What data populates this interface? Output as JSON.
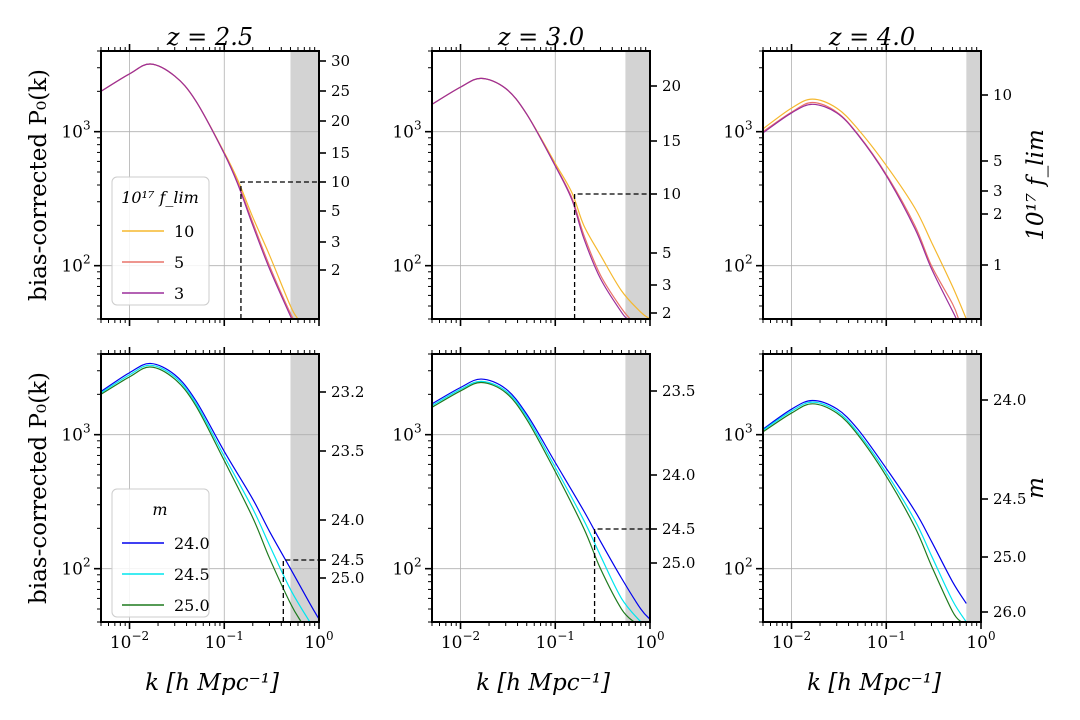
{
  "figure": {
    "ylabel": "bias-corrected P₀(k)",
    "xlabel": "k  [h Mpc⁻¹]",
    "right_ylabel_top": "10¹⁷ f_lim",
    "right_ylabel_bottom": "m",
    "column_titles": [
      "z = 2.5",
      "z = 3.0",
      "z = 4.0"
    ],
    "x_tick_labels": [
      "10⁻²",
      "10⁻¹",
      "10⁰"
    ],
    "y_tick_labels": [
      "10²",
      "10³"
    ],
    "legend_top": {
      "title": "10¹⁷ f_lim",
      "entries": [
        "10",
        "5",
        "3"
      ]
    },
    "legend_bottom": {
      "title": "m",
      "entries": [
        "24.0",
        "24.5",
        "25.0"
      ]
    }
  },
  "colors": {
    "flim_10": "#f5b82e",
    "flim_5": "#e9736a",
    "flim_3": "#9b2e9c",
    "m_24_0": "#0000ee",
    "m_24_5": "#00e5ee",
    "m_25_0": "#1e7a1e",
    "shade": "#d3d3d3",
    "grid": "#b0b0b0"
  },
  "chart_data": [
    {
      "type": "line",
      "row": "flim",
      "col": 0,
      "z": 2.5,
      "title": "z = 2.5",
      "xlabel": "",
      "ylabel": "bias-corrected P₀(k)",
      "x_scale": "log",
      "y_scale": "log",
      "xlim": [
        0.005,
        1.0
      ],
      "ylim": [
        40,
        4000
      ],
      "shaded_kmin": 0.5,
      "series": [
        {
          "name": "10",
          "color_key": "flim_10",
          "peak": 3200,
          "x": [
            0.005,
            0.01,
            0.0166,
            0.03,
            0.05,
            0.1,
            0.14,
            0.2,
            0.3,
            0.5,
            0.6
          ],
          "y": [
            2000,
            2700,
            3200,
            2600,
            1700,
            700,
            430,
            230,
            120,
            50,
            40
          ]
        },
        {
          "name": "5",
          "color_key": "flim_5",
          "peak": 3200,
          "x": [
            0.005,
            0.01,
            0.0166,
            0.03,
            0.05,
            0.1,
            0.14,
            0.2,
            0.3,
            0.5,
            0.55
          ],
          "y": [
            2000,
            2700,
            3200,
            2600,
            1700,
            690,
            410,
            210,
            100,
            44,
            40
          ]
        },
        {
          "name": "3",
          "color_key": "flim_3",
          "peak": 3200,
          "x": [
            0.005,
            0.01,
            0.0166,
            0.03,
            0.05,
            0.1,
            0.14,
            0.2,
            0.3,
            0.5,
            0.52
          ],
          "y": [
            2000,
            2700,
            3200,
            2600,
            1700,
            685,
            400,
            200,
            95,
            42,
            40
          ]
        }
      ],
      "secondary_axis": {
        "label": "10¹⁷ f_lim",
        "ticks": [
          30,
          25,
          20,
          15,
          10,
          5,
          3,
          2
        ]
      },
      "cutoff_marker": {
        "k": 0.15,
        "value": 10
      }
    },
    {
      "type": "line",
      "row": "flim",
      "col": 1,
      "z": 3.0,
      "title": "z = 3.0",
      "xlabel": "",
      "ylabel": "",
      "x_scale": "log",
      "y_scale": "log",
      "xlim": [
        0.005,
        1.0
      ],
      "ylim": [
        40,
        4000
      ],
      "shaded_kmin": 0.55,
      "series": [
        {
          "name": "10",
          "color_key": "flim_10",
          "peak": 2500,
          "x": [
            0.005,
            0.01,
            0.0166,
            0.03,
            0.05,
            0.1,
            0.15,
            0.2,
            0.3,
            0.5,
            0.8,
            1.0
          ],
          "y": [
            1600,
            2150,
            2500,
            2100,
            1350,
            580,
            350,
            200,
            120,
            65,
            45,
            40
          ]
        },
        {
          "name": "5",
          "color_key": "flim_5",
          "peak": 2500,
          "x": [
            0.005,
            0.01,
            0.0166,
            0.03,
            0.05,
            0.1,
            0.15,
            0.2,
            0.3,
            0.5,
            0.62
          ],
          "y": [
            1600,
            2150,
            2500,
            2100,
            1350,
            560,
            320,
            170,
            85,
            48,
            40
          ]
        },
        {
          "name": "3",
          "color_key": "flim_3",
          "peak": 2500,
          "x": [
            0.005,
            0.01,
            0.0166,
            0.03,
            0.05,
            0.1,
            0.15,
            0.2,
            0.3,
            0.5,
            0.58
          ],
          "y": [
            1600,
            2150,
            2500,
            2100,
            1350,
            555,
            310,
            160,
            80,
            45,
            40
          ]
        }
      ],
      "secondary_axis": {
        "label": "10¹⁷ f_lim",
        "ticks": [
          20,
          15,
          10,
          5,
          3,
          2
        ]
      },
      "cutoff_marker": {
        "k": 0.16,
        "value": 10
      }
    },
    {
      "type": "line",
      "row": "flim",
      "col": 2,
      "z": 4.0,
      "title": "z = 4.0",
      "xlabel": "",
      "ylabel": "",
      "x_scale": "log",
      "y_scale": "log",
      "xlim": [
        0.005,
        1.0
      ],
      "ylim": [
        40,
        4000
      ],
      "shaded_kmin": 0.7,
      "series": [
        {
          "name": "10",
          "color_key": "flim_10",
          "peak": 1750,
          "x": [
            0.005,
            0.01,
            0.0166,
            0.03,
            0.05,
            0.1,
            0.2,
            0.3,
            0.5,
            0.7
          ],
          "y": [
            1050,
            1500,
            1750,
            1500,
            1050,
            560,
            270,
            150,
            70,
            40
          ]
        },
        {
          "name": "5",
          "color_key": "flim_5",
          "peak": 1650,
          "x": [
            0.005,
            0.01,
            0.0166,
            0.03,
            0.05,
            0.1,
            0.2,
            0.3,
            0.5,
            0.58
          ],
          "y": [
            1000,
            1400,
            1650,
            1400,
            960,
            480,
            200,
            100,
            52,
            40
          ]
        },
        {
          "name": "3",
          "color_key": "flim_3",
          "peak": 1600,
          "x": [
            0.005,
            0.01,
            0.0166,
            0.03,
            0.05,
            0.1,
            0.2,
            0.3,
            0.5,
            0.55
          ],
          "y": [
            980,
            1380,
            1600,
            1380,
            950,
            470,
            190,
            95,
            46,
            40
          ]
        }
      ],
      "secondary_axis": {
        "label": "10¹⁷ f_lim",
        "ticks": [
          10,
          5,
          3,
          2,
          1
        ]
      }
    },
    {
      "type": "line",
      "row": "m",
      "col": 0,
      "z": 2.5,
      "title": "",
      "xlabel": "k  [h Mpc⁻¹]",
      "ylabel": "bias-corrected P₀(k)",
      "x_scale": "log",
      "y_scale": "log",
      "xlim": [
        0.005,
        1.0
      ],
      "ylim": [
        40,
        4000
      ],
      "shaded_kmin": 0.5,
      "series": [
        {
          "name": "24.0",
          "color_key": "m_24_0",
          "peak": 3400,
          "x": [
            0.005,
            0.01,
            0.0166,
            0.03,
            0.05,
            0.1,
            0.2,
            0.3,
            0.5,
            0.8,
            1.0
          ],
          "y": [
            2100,
            2900,
            3400,
            2800,
            1800,
            750,
            330,
            190,
            100,
            55,
            42
          ]
        },
        {
          "name": "24.5",
          "color_key": "m_24_5",
          "peak": 3300,
          "x": [
            0.005,
            0.01,
            0.0166,
            0.03,
            0.05,
            0.1,
            0.2,
            0.3,
            0.5,
            0.8
          ],
          "y": [
            2050,
            2800,
            3300,
            2700,
            1720,
            690,
            280,
            150,
            70,
            40
          ]
        },
        {
          "name": "25.0",
          "color_key": "m_25_0",
          "peak": 3200,
          "x": [
            0.005,
            0.01,
            0.0166,
            0.03,
            0.05,
            0.1,
            0.2,
            0.3,
            0.5,
            0.65
          ],
          "y": [
            2000,
            2700,
            3200,
            2600,
            1650,
            640,
            240,
            120,
            55,
            40
          ]
        }
      ],
      "secondary_axis": {
        "label": "m",
        "ticks": [
          23.2,
          23.5,
          24.0,
          24.5,
          25.0
        ]
      },
      "cutoff_marker": {
        "k": 0.42,
        "value": 24.5
      }
    },
    {
      "type": "line",
      "row": "m",
      "col": 1,
      "z": 3.0,
      "title": "",
      "xlabel": "k  [h Mpc⁻¹]",
      "ylabel": "",
      "x_scale": "log",
      "y_scale": "log",
      "xlim": [
        0.005,
        1.0
      ],
      "ylim": [
        40,
        4000
      ],
      "shaded_kmin": 0.55,
      "series": [
        {
          "name": "24.0",
          "color_key": "m_24_0",
          "peak": 2600,
          "x": [
            0.005,
            0.01,
            0.0166,
            0.03,
            0.05,
            0.1,
            0.2,
            0.3,
            0.5,
            0.8,
            1.0
          ],
          "y": [
            1700,
            2250,
            2600,
            2200,
            1420,
            620,
            270,
            160,
            85,
            50,
            42
          ]
        },
        {
          "name": "24.5",
          "color_key": "m_24_5",
          "peak": 2500,
          "x": [
            0.005,
            0.01,
            0.0166,
            0.03,
            0.05,
            0.1,
            0.2,
            0.3,
            0.5,
            0.8
          ],
          "y": [
            1650,
            2180,
            2500,
            2120,
            1360,
            570,
            230,
            125,
            60,
            40
          ]
        },
        {
          "name": "25.0",
          "color_key": "m_25_0",
          "peak": 2450,
          "x": [
            0.005,
            0.01,
            0.0166,
            0.03,
            0.05,
            0.1,
            0.2,
            0.3,
            0.5,
            0.68
          ],
          "y": [
            1600,
            2120,
            2450,
            2060,
            1300,
            530,
            200,
            100,
            50,
            40
          ]
        }
      ],
      "secondary_axis": {
        "label": "m",
        "ticks": [
          23.5,
          24.0,
          24.5,
          25.0
        ]
      },
      "cutoff_marker": {
        "k": 0.26,
        "value": 24.5
      }
    },
    {
      "type": "line",
      "row": "m",
      "col": 2,
      "z": 4.0,
      "title": "",
      "xlabel": "k  [h Mpc⁻¹]",
      "ylabel": "",
      "x_scale": "log",
      "y_scale": "log",
      "xlim": [
        0.005,
        1.0
      ],
      "ylim": [
        40,
        4000
      ],
      "shaded_kmin": 0.7,
      "series": [
        {
          "name": "24.0",
          "color_key": "m_24_0",
          "peak": 1800,
          "x": [
            0.005,
            0.01,
            0.0166,
            0.03,
            0.05,
            0.1,
            0.2,
            0.3,
            0.5,
            0.7
          ],
          "y": [
            1100,
            1550,
            1800,
            1560,
            1100,
            560,
            270,
            160,
            80,
            55
          ]
        },
        {
          "name": "24.5",
          "color_key": "m_24_5",
          "peak": 1750,
          "x": [
            0.005,
            0.01,
            0.0166,
            0.03,
            0.05,
            0.1,
            0.2,
            0.3,
            0.5,
            0.7
          ],
          "y": [
            1080,
            1500,
            1750,
            1500,
            1040,
            520,
            230,
            125,
            58,
            40
          ]
        },
        {
          "name": "25.0",
          "color_key": "m_25_0",
          "peak": 1700,
          "x": [
            0.005,
            0.01,
            0.0166,
            0.03,
            0.05,
            0.1,
            0.2,
            0.3,
            0.5,
            0.62
          ],
          "y": [
            1050,
            1450,
            1700,
            1450,
            1000,
            490,
            205,
            105,
            48,
            40
          ]
        }
      ],
      "secondary_axis": {
        "label": "m",
        "ticks": [
          24.0,
          24.5,
          25.0,
          26.0
        ]
      }
    }
  ]
}
